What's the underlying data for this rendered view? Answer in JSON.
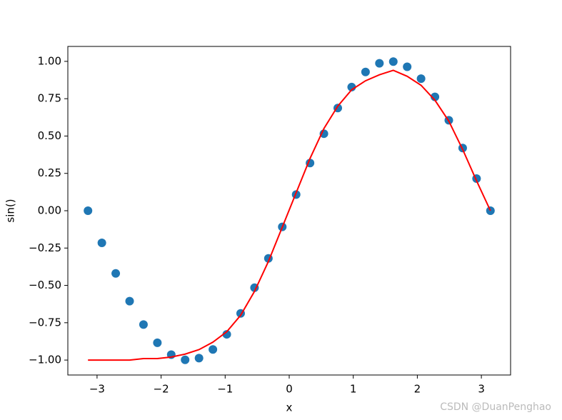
{
  "chart_data": {
    "type": "scatter",
    "xlabel": "x",
    "ylabel": "sin()",
    "x": [
      -3.1416,
      -2.9249,
      -2.7083,
      -2.4916,
      -2.275,
      -2.0583,
      -1.8416,
      -1.625,
      -1.4083,
      -1.1916,
      -0.975,
      -0.7583,
      -0.5417,
      -0.325,
      -0.1083,
      0.1083,
      0.325,
      0.5417,
      0.7583,
      0.975,
      1.1916,
      1.4083,
      1.625,
      1.8416,
      2.0583,
      2.275,
      2.4916,
      2.7083,
      2.9249,
      3.1416
    ],
    "series": [
      {
        "type": "scatter",
        "color": "#1f77b4",
        "values": [
          0,
          -0.215,
          -0.4199,
          -0.6056,
          -0.7622,
          -0.8844,
          -0.9638,
          -0.9985,
          -0.9868,
          -0.929,
          -0.8277,
          -0.6877,
          -0.5156,
          -0.3193,
          -0.1081,
          0.1081,
          0.3193,
          0.5156,
          0.6877,
          0.8277,
          0.929,
          0.9868,
          0.9985,
          0.9638,
          0.8844,
          0.7622,
          0.6056,
          0.4199,
          0.215,
          0
        ]
      },
      {
        "type": "line",
        "color": "#ff0000",
        "values": [
          -1.0,
          -1.0,
          -1.0,
          -1.0,
          -0.99,
          -0.99,
          -0.98,
          -0.96,
          -0.93,
          -0.88,
          -0.81,
          -0.7,
          -0.54,
          -0.34,
          -0.11,
          0.12,
          0.35,
          0.55,
          0.7,
          0.81,
          0.87,
          0.91,
          0.94,
          0.9,
          0.84,
          0.74,
          0.6,
          0.41,
          0.2,
          0.0
        ]
      }
    ],
    "xlim": [
      -3.456,
      3.456
    ],
    "ylim": [
      -1.1,
      1.1
    ],
    "xticks": [
      {
        "value": -3,
        "label": "−3"
      },
      {
        "value": -2,
        "label": "−2"
      },
      {
        "value": -1,
        "label": "−1"
      },
      0,
      1,
      2,
      3
    ],
    "yticks": [
      {
        "value": -1,
        "label": "−1.00"
      },
      {
        "value": -0.75,
        "label": "−0.75"
      },
      {
        "value": -0.5,
        "label": "−0.50"
      },
      {
        "value": -0.25,
        "label": "−0.25"
      },
      {
        "value": 0,
        "label": "0.00"
      },
      {
        "value": 0.25,
        "label": "0.25"
      },
      {
        "value": 0.5,
        "label": "0.50"
      },
      {
        "value": 0.75,
        "label": "0.75"
      },
      {
        "value": 1,
        "label": "1.00"
      }
    ],
    "watermark": "CSDN @DuanPenghao"
  }
}
